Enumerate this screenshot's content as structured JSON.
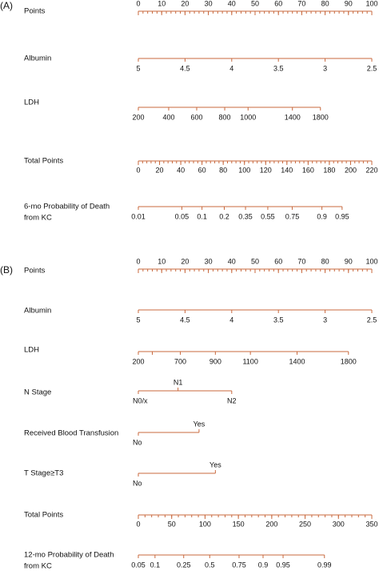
{
  "panels": [
    {
      "label": "(A)",
      "points_lim": [
        0,
        100
      ],
      "total_lim": [
        0,
        220
      ],
      "scales": [
        {
          "kind": "points",
          "name": [
            "Points"
          ],
          "minor_step": 2,
          "ticks": [
            0,
            10,
            20,
            30,
            40,
            50,
            60,
            70,
            80,
            90,
            100
          ]
        },
        {
          "kind": "variable",
          "name": [
            "Albumin"
          ],
          "ticks": [
            {
              "label": "5",
              "points": 0
            },
            {
              "label": "4.5",
              "points": 20
            },
            {
              "label": "4",
              "points": 40
            },
            {
              "label": "3.5",
              "points": 60
            },
            {
              "label": "3",
              "points": 80
            },
            {
              "label": "2.5",
              "points": 100
            }
          ]
        },
        {
          "kind": "variable",
          "name": [
            "LDH"
          ],
          "ticks": [
            {
              "label": "200",
              "points": 0
            },
            {
              "label": "400",
              "points": 13
            },
            {
              "label": "600",
              "points": 25
            },
            {
              "label": "800",
              "points": 37
            },
            {
              "label": "1000",
              "points": 47
            },
            {
              "label": "1400",
              "points": 66
            },
            {
              "label": "1800",
              "points": 78
            }
          ]
        },
        {
          "kind": "total",
          "name": [
            "Total Points"
          ],
          "minor_step": 4,
          "ticks": [
            0,
            20,
            40,
            60,
            80,
            100,
            120,
            140,
            160,
            180,
            200,
            220
          ]
        },
        {
          "kind": "probability",
          "name": [
            "6-mo Probability of Death",
            "from KC"
          ],
          "ticks": [
            {
              "label": "0.01",
              "total_points": 0
            },
            {
              "label": "0.05",
              "total_points": 41
            },
            {
              "label": "0.1",
              "total_points": 60
            },
            {
              "label": "0.2",
              "total_points": 81
            },
            {
              "label": "0.35",
              "total_points": 101
            },
            {
              "label": "0.55",
              "total_points": 122
            },
            {
              "label": "0.75",
              "total_points": 145
            },
            {
              "label": "0.9",
              "total_points": 173
            },
            {
              "label": "0.95",
              "total_points": 192
            }
          ]
        }
      ]
    },
    {
      "label": "(B)",
      "points_lim": [
        0,
        100
      ],
      "total_lim": [
        0,
        350
      ],
      "scales": [
        {
          "kind": "points",
          "name": [
            "Points"
          ],
          "minor_step": 2,
          "ticks": [
            0,
            10,
            20,
            30,
            40,
            50,
            60,
            70,
            80,
            90,
            100
          ]
        },
        {
          "kind": "variable",
          "name": [
            "Albumin"
          ],
          "ticks": [
            {
              "label": "5",
              "points": 0
            },
            {
              "label": "4.5",
              "points": 20
            },
            {
              "label": "4",
              "points": 40
            },
            {
              "label": "3.5",
              "points": 60
            },
            {
              "label": "3",
              "points": 80
            },
            {
              "label": "2.5",
              "points": 100
            }
          ]
        },
        {
          "kind": "variable",
          "name": [
            "LDH"
          ],
          "ticks": [
            {
              "label": "200",
              "points": 0
            },
            {
              "label": null,
              "points": 6
            },
            {
              "label": "700",
              "points": 18
            },
            {
              "label": "900",
              "points": 33
            },
            {
              "label": "1100",
              "points": 48
            },
            {
              "label": "1400",
              "points": 68
            },
            {
              "label": "1800",
              "points": 90
            }
          ]
        },
        {
          "kind": "variable",
          "name": [
            "N Stage"
          ],
          "ticks": [
            {
              "label": "N0/x",
              "points": 0
            },
            {
              "label": "N1",
              "points": 17,
              "above": true
            },
            {
              "label": "N2",
              "points": 40
            }
          ]
        },
        {
          "kind": "variable",
          "name": [
            "Received Blood Transfusion"
          ],
          "ticks": [
            {
              "label": "No",
              "points": 0
            },
            {
              "label": "Yes",
              "points": 26,
              "above": true
            }
          ]
        },
        {
          "kind": "variable",
          "name": [
            "T Stage≥T3"
          ],
          "ticks": [
            {
              "label": "No",
              "points": 0
            },
            {
              "label": "Yes",
              "points": 33,
              "above": true
            }
          ]
        },
        {
          "kind": "total",
          "name": [
            "Total Points"
          ],
          "minor_step": 10,
          "ticks": [
            0,
            50,
            100,
            150,
            200,
            250,
            300,
            350
          ]
        },
        {
          "kind": "probability",
          "name": [
            "12-mo Probability of Death",
            "from KC"
          ],
          "ticks": [
            {
              "label": "0.05",
              "total_points": 0
            },
            {
              "label": "0.1",
              "total_points": 25
            },
            {
              "label": "0.25",
              "total_points": 68
            },
            {
              "label": "0.5",
              "total_points": 107
            },
            {
              "label": "0.75",
              "total_points": 151
            },
            {
              "label": "0.9",
              "total_points": 187
            },
            {
              "label": "0.95",
              "total_points": 217
            },
            {
              "label": "0.99",
              "total_points": 279
            }
          ]
        }
      ]
    }
  ]
}
